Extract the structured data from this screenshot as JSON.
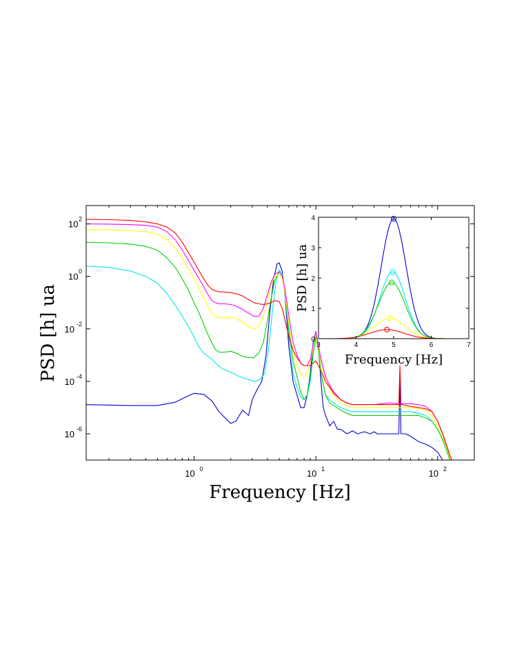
{
  "chart_data": [
    {
      "type": "line",
      "title": "",
      "xlabel": "Frequency [Hz]",
      "ylabel": "PSD [h] ua",
      "xscale": "log",
      "yscale": "log",
      "xlim": [
        0.13,
        200
      ],
      "ylim": [
        1e-07,
        500
      ],
      "grid": false,
      "xticks": [
        {
          "value": 1,
          "base": "10",
          "exp": "0"
        },
        {
          "value": 10,
          "base": "10",
          "exp": "1"
        },
        {
          "value": 100,
          "base": "10",
          "exp": "2"
        }
      ],
      "yticks": [
        {
          "value": 1e-06,
          "base": "10",
          "exp": "-6"
        },
        {
          "value": 0.0001,
          "base": "10",
          "exp": "-4"
        },
        {
          "value": 0.01,
          "base": "10",
          "exp": "-2"
        },
        {
          "value": 1,
          "base": "10",
          "exp": "0"
        },
        {
          "value": 100,
          "base": "10",
          "exp": "2"
        }
      ],
      "series": [
        {
          "color": "#0000cc",
          "x": [
            0.13,
            0.3,
            0.5,
            0.7,
            0.85,
            1.0,
            1.2,
            1.4,
            1.6,
            1.8,
            2.0,
            2.2,
            2.5,
            2.8,
            3.0,
            3.3,
            3.6,
            3.9,
            4.2,
            4.5,
            4.8,
            5.0,
            5.3,
            5.6,
            6.0,
            6.5,
            7.0,
            7.5,
            8.0,
            8.5,
            9.0,
            9.5,
            10.0,
            10.5,
            11.0,
            11.5,
            12,
            13,
            14,
            15,
            16,
            18,
            20,
            22,
            25,
            28,
            30,
            32,
            35,
            40,
            45,
            48,
            49,
            50,
            51,
            55,
            60,
            70,
            80,
            90,
            100,
            110,
            120,
            130
          ],
          "y": [
            1.3e-05,
            1.2e-05,
            1.2e-05,
            1.6e-05,
            2.5e-05,
            3.5e-05,
            3.2e-05,
            1.8e-05,
            7e-06,
            4e-06,
            2.5e-06,
            3e-06,
            8e-06,
            5e-06,
            2e-05,
            5e-05,
            0.0001,
            0.001,
            0.05,
            0.8,
            3,
            3.3,
            1.5,
            0.15,
            0.002,
            0.0001,
            3e-05,
            1e-05,
            1e-05,
            3e-05,
            0.0002,
            0.003,
            0.008,
            0.002,
            0.0001,
            1e-05,
            5e-06,
            2e-06,
            3e-06,
            1.5e-06,
            1.5e-06,
            1e-06,
            1.3e-06,
            1e-06,
            1.2e-06,
            1e-06,
            1.2e-06,
            1e-06,
            1e-06,
            1e-06,
            1e-06,
            1e-06,
            0.00015,
            1e-06,
            1e-06,
            1e-06,
            8e-07,
            5e-07,
            4e-07,
            3e-07,
            2e-07,
            1e-07,
            7e-08,
            5e-08
          ]
        },
        {
          "color": "#00e5e5",
          "x": [
            0.13,
            0.2,
            0.3,
            0.4,
            0.5,
            0.6,
            0.7,
            0.8,
            0.9,
            1.0,
            1.1,
            1.2,
            1.3,
            1.4,
            1.5,
            1.7,
            1.9,
            2.1,
            2.3,
            2.6,
            2.9,
            3.2,
            3.5,
            3.8,
            4.1,
            4.4,
            4.7,
            5.0,
            5.3,
            5.6,
            6.0,
            6.5,
            7.0,
            7.5,
            8.0,
            8.5,
            9.0,
            9.5,
            10,
            10.5,
            11,
            12,
            13,
            14,
            16,
            18,
            20,
            25,
            30,
            40,
            50,
            60,
            70,
            80,
            90,
            100,
            110,
            120,
            130
          ],
          "y": [
            2.5,
            2.2,
            1.6,
            1.0,
            0.55,
            0.22,
            0.08,
            0.03,
            0.012,
            0.005,
            0.002,
            0.0012,
            0.0009,
            0.0007,
            0.0005,
            0.0003,
            0.00025,
            0.0002,
            0.00016,
            0.00013,
            0.00011,
            0.0001,
            0.00012,
            0.0002,
            0.002,
            0.05,
            0.6,
            1.8,
            1.2,
            0.2,
            0.005,
            0.0002,
            6e-05,
            2.5e-05,
            2e-05,
            3e-05,
            0.0001,
            0.001,
            0.005,
            0.0015,
            0.0002,
            3e-05,
            2e-05,
            1.5e-05,
            1e-05,
            8e-06,
            7e-06,
            7e-06,
            7e-06,
            7e-06,
            7e-06,
            7e-06,
            6e-06,
            5e-06,
            3e-06,
            1.5e-06,
            6e-07,
            2e-07,
            6e-08
          ]
        },
        {
          "color": "#00d000",
          "x": [
            0.13,
            0.2,
            0.3,
            0.4,
            0.5,
            0.6,
            0.7,
            0.8,
            0.9,
            1.0,
            1.1,
            1.2,
            1.3,
            1.4,
            1.5,
            1.6,
            1.8,
            2.0,
            2.2,
            2.5,
            2.8,
            3.1,
            3.4,
            3.7,
            4.0,
            4.3,
            4.6,
            5.0,
            5.3,
            5.6,
            6.0,
            6.5,
            7.0,
            7.5,
            8.0,
            8.5,
            9.0,
            9.5,
            10,
            10.5,
            11,
            12,
            13,
            14,
            16,
            18,
            20,
            25,
            30,
            40,
            50,
            60,
            70,
            80,
            90,
            100,
            110,
            120,
            130
          ],
          "y": [
            20,
            19,
            17,
            14,
            10,
            5,
            2.2,
            0.8,
            0.3,
            0.1,
            0.04,
            0.015,
            0.006,
            0.003,
            0.0016,
            0.0013,
            0.0013,
            0.0014,
            0.0012,
            0.0009,
            0.0008,
            0.0008,
            0.0012,
            0.003,
            0.02,
            0.15,
            0.7,
            1.5,
            1.0,
            0.2,
            0.01,
            0.0006,
            0.00015,
            4e-05,
            2e-05,
            3e-05,
            0.00015,
            0.0012,
            0.005,
            0.0015,
            0.0002,
            3e-05,
            1.5e-05,
            1.2e-05,
            8e-06,
            6e-06,
            5e-06,
            5e-06,
            5e-06,
            5e-06,
            5e-06,
            5e-06,
            5e-06,
            4e-06,
            3e-06,
            1.5e-06,
            6e-07,
            2e-07,
            6e-08
          ]
        },
        {
          "color": "#ffff00",
          "x": [
            0.13,
            0.2,
            0.3,
            0.4,
            0.5,
            0.6,
            0.7,
            0.8,
            0.9,
            1.0,
            1.1,
            1.2,
            1.3,
            1.4,
            1.5,
            1.6,
            1.8,
            2.0,
            2.2,
            2.5,
            2.8,
            3.1,
            3.4,
            3.7,
            4.0,
            4.3,
            4.6,
            5.0,
            5.3,
            5.6,
            6.0,
            6.5,
            7.0,
            7.5,
            8.0,
            8.5,
            9.0,
            9.5,
            10,
            10.5,
            11,
            12,
            13,
            14,
            16,
            18,
            20,
            25,
            30,
            40,
            50,
            60,
            70,
            80,
            90,
            100,
            110,
            120,
            130
          ],
          "y": [
            60,
            58,
            55,
            50,
            40,
            25,
            12,
            5,
            2,
            0.8,
            0.35,
            0.15,
            0.07,
            0.04,
            0.03,
            0.027,
            0.027,
            0.028,
            0.025,
            0.018,
            0.012,
            0.01,
            0.012,
            0.03,
            0.12,
            0.5,
            1.0,
            1.2,
            0.8,
            0.2,
            0.015,
            0.0015,
            0.0004,
            0.0002,
            0.00015,
            0.0002,
            0.0005,
            0.002,
            0.007,
            0.002,
            0.0005,
            0.0001,
            5e-05,
            3e-05,
            1.5e-05,
            1.2e-05,
            1e-05,
            1e-05,
            1e-05,
            1e-05,
            1e-05,
            1e-05,
            9e-06,
            8e-06,
            5e-06,
            2e-06,
            8e-07,
            2.5e-07,
            8e-08
          ]
        },
        {
          "color": "#ff00ff",
          "x": [
            0.13,
            0.2,
            0.3,
            0.4,
            0.5,
            0.6,
            0.7,
            0.8,
            0.9,
            1.0,
            1.1,
            1.2,
            1.3,
            1.4,
            1.5,
            1.6,
            1.8,
            2.0,
            2.2,
            2.5,
            2.8,
            3.1,
            3.4,
            3.7,
            4.0,
            4.3,
            4.6,
            5.0,
            5.3,
            5.6,
            6.0,
            6.5,
            7.0,
            7.5,
            8.0,
            8.5,
            9.0,
            9.5,
            10,
            10.5,
            11,
            12,
            13,
            14,
            16,
            18,
            20,
            25,
            30,
            40,
            50,
            60,
            70,
            80,
            90,
            100,
            110,
            120,
            130
          ],
          "y": [
            100,
            98,
            94,
            88,
            75,
            50,
            25,
            10,
            4,
            1.7,
            0.8,
            0.4,
            0.2,
            0.12,
            0.1,
            0.09,
            0.09,
            0.085,
            0.075,
            0.055,
            0.04,
            0.03,
            0.03,
            0.06,
            0.2,
            0.6,
            1.2,
            1.5,
            1.0,
            0.3,
            0.03,
            0.003,
            0.001,
            0.0005,
            0.0004,
            0.0004,
            0.0007,
            0.0025,
            0.008,
            0.0025,
            0.0007,
            0.00015,
            7e-05,
            4e-05,
            2e-05,
            1.5e-05,
            1.3e-05,
            1.3e-05,
            1.3e-05,
            1.5e-05,
            1.4e-05,
            1.4e-05,
            1.3e-05,
            1.1e-05,
            7e-06,
            3e-06,
            1e-06,
            3e-07,
            1e-07
          ]
        },
        {
          "color": "#ff0000",
          "x": [
            0.13,
            0.2,
            0.3,
            0.4,
            0.5,
            0.6,
            0.7,
            0.8,
            0.9,
            1.0,
            1.1,
            1.2,
            1.3,
            1.4,
            1.5,
            1.6,
            1.8,
            2.0,
            2.2,
            2.5,
            2.8,
            3.1,
            3.4,
            3.7,
            4.0,
            4.3,
            4.6,
            5.0,
            5.3,
            5.6,
            6.0,
            6.5,
            7.0,
            7.5,
            8.0,
            8.5,
            9.0,
            9.5,
            10,
            10.5,
            11,
            12,
            13,
            14,
            16,
            18,
            20,
            25,
            30,
            40,
            45,
            48,
            49,
            50,
            51,
            55,
            60,
            70,
            80,
            90,
            100,
            110,
            120,
            130
          ],
          "y": [
            150,
            145,
            135,
            120,
            100,
            75,
            45,
            20,
            8,
            3.5,
            1.6,
            0.8,
            0.45,
            0.32,
            0.28,
            0.26,
            0.25,
            0.24,
            0.22,
            0.18,
            0.13,
            0.1,
            0.09,
            0.085,
            0.09,
            0.1,
            0.12,
            0.11,
            0.06,
            0.02,
            0.005,
            0.0015,
            0.0008,
            0.0005,
            0.0004,
            0.0004,
            0.0004,
            0.0005,
            0.0006,
            0.0004,
            0.00025,
            0.0001,
            6e-05,
            3.5e-05,
            2e-05,
            1.5e-05,
            1.3e-05,
            1.3e-05,
            1.3e-05,
            1.3e-05,
            1.3e-05,
            1.3e-05,
            0.0004,
            1.3e-05,
            1.3e-05,
            1.2e-05,
            1.1e-05,
            1e-05,
            9e-06,
            7e-06,
            3e-06,
            1e-06,
            3e-07,
            1e-07
          ]
        }
      ]
    },
    {
      "type": "line",
      "title": "",
      "xlabel": "Frequency [Hz]",
      "ylabel": "PSD [h] ua",
      "xlim": [
        3,
        7
      ],
      "ylim": [
        0,
        4
      ],
      "xticks": [
        3,
        4,
        5,
        6,
        7
      ],
      "yticks": [
        0,
        1,
        2,
        3,
        4
      ],
      "grid": false,
      "series": [
        {
          "color": "#0000cc",
          "peak_x": 5.0,
          "peak_y": 3.95,
          "width": 0.33
        },
        {
          "color": "#00e5e5",
          "peak_x": 4.97,
          "peak_y": 2.2,
          "width": 0.34
        },
        {
          "color": "#00d000",
          "peak_x": 4.95,
          "peak_y": 1.85,
          "width": 0.36
        },
        {
          "color": "#ffff00",
          "peak_x": 4.9,
          "peak_y": 0.68,
          "width": 0.4
        },
        {
          "color": "#ff0000",
          "peak_x": 4.82,
          "peak_y": 0.3,
          "width": 0.45
        }
      ]
    }
  ]
}
